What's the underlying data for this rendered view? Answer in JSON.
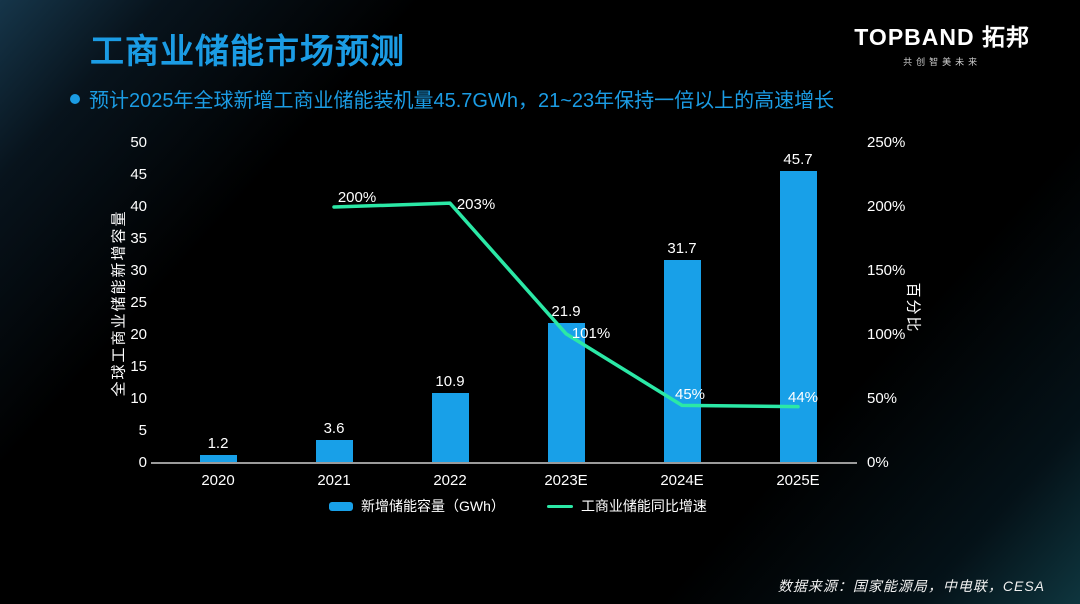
{
  "slide": {
    "title": "工商业储能市场预测",
    "bullet": "预计2025年全球新增工商业储能装机量45.7GWh，21~23年保持一倍以上的高速增长",
    "logo": {
      "brand": "TOPBAND 拓邦",
      "tagline": "共创智美未来"
    },
    "source": "数据来源：国家能源局，中电联，CESA"
  },
  "colors": {
    "accent_blue": "#1B9CE4",
    "bar_blue": "#18A0E8",
    "line_teal": "#2BE8A6"
  },
  "chart_data": {
    "type": "bar",
    "subtype": "bar+line dual-axis combo",
    "categories": [
      "2020",
      "2021",
      "2022",
      "2023E",
      "2024E",
      "2025E"
    ],
    "series": [
      {
        "name": "新增储能容量（GWh）",
        "type": "bar",
        "axis": "left",
        "color": "#18A0E8",
        "values": [
          1.2,
          3.6,
          10.9,
          21.9,
          31.7,
          45.7
        ],
        "labels": [
          "1.2",
          "3.6",
          "10.9",
          "21.9",
          "31.7",
          "45.7"
        ]
      },
      {
        "name": "工商业储能同比增速",
        "type": "line",
        "axis": "right",
        "color": "#2BE8A6",
        "values": [
          null,
          200,
          203,
          101,
          45,
          44
        ],
        "labels": [
          "",
          "200%",
          "203%",
          "101%",
          "45%",
          "44%"
        ]
      }
    ],
    "left_axis": {
      "title": "全球工商业储能新增容量",
      "min": 0,
      "max": 50,
      "step": 5,
      "ticks": [
        "50",
        "45",
        "40",
        "35",
        "30",
        "25",
        "20",
        "15",
        "10",
        "5",
        "0"
      ]
    },
    "right_axis": {
      "title": "百分比",
      "min": 0,
      "max": 250,
      "step": 50,
      "ticks": [
        "250%",
        "200%",
        "150%",
        "100%",
        "50%",
        "0%"
      ]
    },
    "legend_position": "bottom",
    "grid": false
  }
}
